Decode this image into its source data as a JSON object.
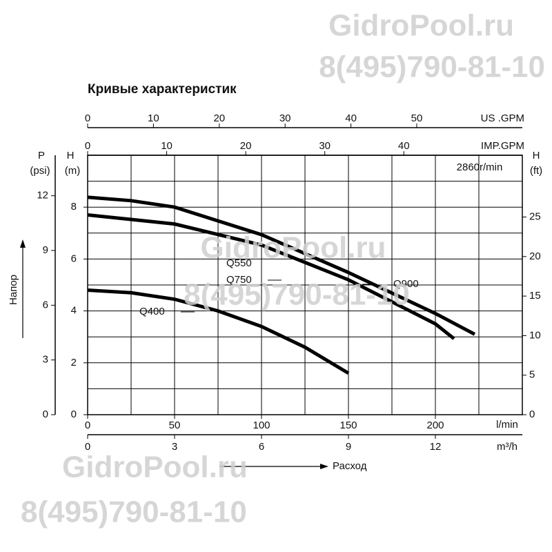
{
  "chart_data": {
    "type": "line",
    "title": "Кривые характеристик",
    "speed": "2860r/min",
    "xlabel": "l/min",
    "xlim": [
      0,
      250
    ],
    "xticks": [
      0,
      50,
      100,
      150,
      200
    ],
    "xgrid": [
      25,
      50,
      75,
      100,
      125,
      150,
      175,
      200,
      225
    ],
    "ylabel": "H",
    "yunit": "(m)",
    "ylim": [
      0,
      10
    ],
    "yticks": [
      0,
      2,
      4,
      6,
      8
    ],
    "ygrid": [
      1,
      2,
      3,
      4,
      5,
      6,
      7,
      8,
      9
    ],
    "secondary_axes": [
      {
        "side": "left",
        "label": "P",
        "unit": "(psi)",
        "lim": [
          0,
          14.22
        ],
        "ticks": [
          0,
          3,
          6,
          9,
          12
        ]
      },
      {
        "side": "right",
        "label": "H",
        "unit": "(ft)",
        "lim": [
          0,
          32.81
        ],
        "ticks": [
          0,
          5,
          10,
          15,
          20,
          25
        ]
      },
      {
        "side": "top",
        "label": "US .GPM",
        "lim": [
          0,
          66.04
        ],
        "ticks": [
          0,
          10,
          20,
          30,
          40,
          50
        ]
      },
      {
        "side": "top",
        "label": "IMP.GPM",
        "lim": [
          0,
          54.99
        ],
        "ticks": [
          0,
          10,
          20,
          30,
          40
        ]
      },
      {
        "side": "bottom",
        "label": "m³/h",
        "lim": [
          0,
          15
        ],
        "ticks": [
          0,
          3,
          6,
          9,
          12
        ]
      }
    ],
    "series": [
      {
        "name": "Q900",
        "color": "#000000",
        "x": [
          0,
          25,
          50,
          100,
          150,
          200,
          222.6
        ],
        "values": [
          8.38,
          8.25,
          8.0,
          6.94,
          5.48,
          3.9,
          3.1
        ]
      },
      {
        "name": "Q750",
        "color": "#000000",
        "x": [
          0,
          50,
          100,
          150,
          200,
          210.7
        ],
        "values": [
          7.7,
          7.35,
          6.54,
          5.2,
          3.5,
          2.93
        ]
      },
      {
        "name": "Q400",
        "color": "#000000",
        "x": [
          0,
          25,
          50,
          75,
          100,
          125,
          150
        ],
        "values": [
          4.8,
          4.7,
          4.45,
          4.0,
          3.4,
          2.6,
          1.6
        ]
      }
    ],
    "annotations": [
      "Q550"
    ],
    "y_axis_title": "Напор",
    "x_axis_title": "Расход",
    "watermarks": [
      "GidroPool.ru",
      "8(495)790-81-10",
      "GidroPool.ru",
      "8(495)790-81-10",
      "GidroPool.ru",
      "8(495)790-81-10"
    ]
  }
}
